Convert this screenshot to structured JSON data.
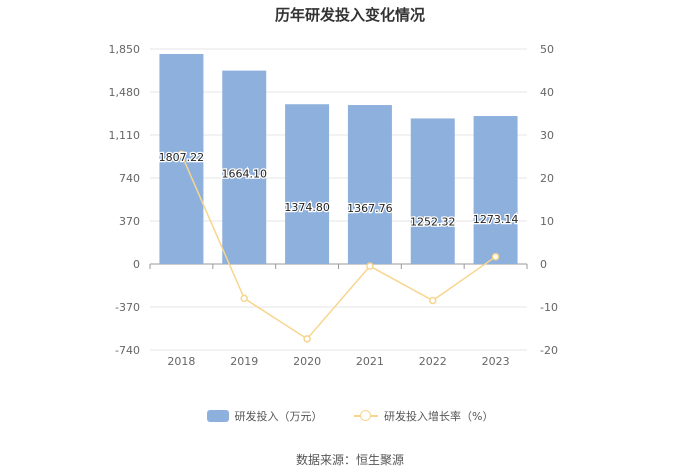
{
  "chart_data": {
    "type": "bar",
    "title": "历年研发投入变化情况",
    "categories": [
      "2018",
      "2019",
      "2020",
      "2021",
      "2022",
      "2023"
    ],
    "series": [
      {
        "name": "研发投入（万元）",
        "type": "bar",
        "axis": "left",
        "color": "#8eb0dc",
        "values": [
          1807.22,
          1664.1,
          1374.8,
          1367.76,
          1252.32,
          1273.14
        ],
        "labels": [
          "1807.22",
          "1664.10",
          "1374.80",
          "1367.76",
          "1252.32",
          "1273.14"
        ]
      },
      {
        "name": "研发投入增长率（%）",
        "type": "line",
        "axis": "right",
        "color": "#f8d58e",
        "values": [
          25.5,
          -8.0,
          -17.4,
          -0.5,
          -8.5,
          1.7
        ]
      }
    ],
    "y_left": {
      "ticks": [
        "1,850",
        "1,480",
        "1,110",
        "740",
        "370",
        "0",
        "-370",
        "-740"
      ],
      "range": [
        -740,
        1850
      ]
    },
    "y_right": {
      "ticks": [
        "50",
        "40",
        "30",
        "20",
        "10",
        "0",
        "-10",
        "-20"
      ],
      "range": [
        -20,
        50
      ]
    },
    "grid": true,
    "legend_position": "bottom"
  },
  "source": "数据来源：恒生聚源"
}
